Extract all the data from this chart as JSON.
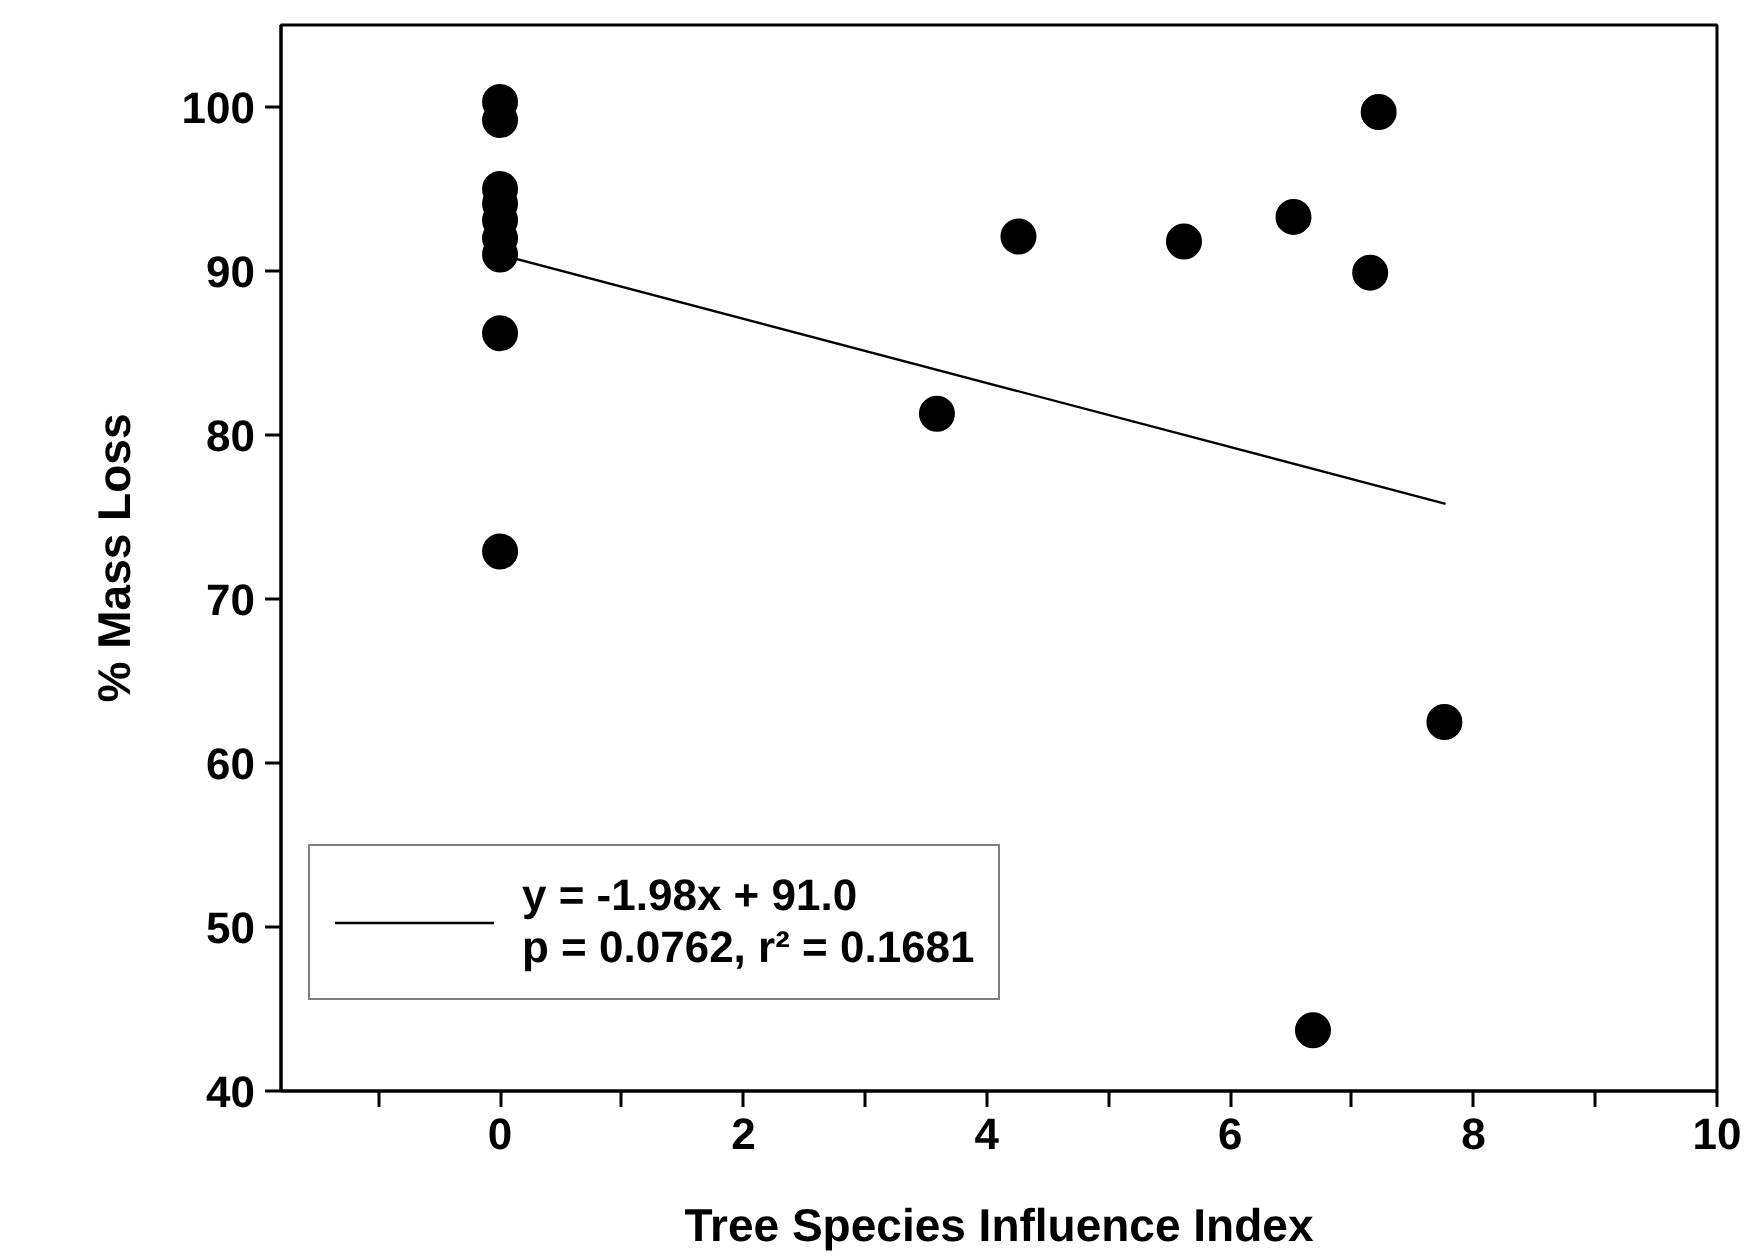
{
  "chart_data": {
    "type": "scatter",
    "xlabel": "Tree Species Influence Index",
    "ylabel": "% Mass Loss",
    "xlim": [
      -1.8,
      10
    ],
    "ylim": [
      40,
      105
    ],
    "xticks": [
      {
        "value": -1,
        "label": null
      },
      0,
      {
        "value": 1,
        "label": null
      },
      2,
      {
        "value": 3,
        "label": null
      },
      4,
      {
        "value": 5,
        "label": null
      },
      6,
      {
        "value": 7,
        "label": null
      },
      8,
      {
        "value": 9,
        "label": null
      },
      10
    ],
    "yticks": [
      40,
      50,
      60,
      70,
      80,
      90,
      100
    ],
    "grid": false,
    "legend": "bottom left",
    "series": [
      {
        "color": "#000000",
        "marker": "circle",
        "x": [
          0,
          0,
          0,
          0,
          0,
          0,
          0,
          0,
          0,
          3.59,
          4.26,
          5.62,
          6.52,
          7.15,
          7.22,
          7.76,
          6.68
        ],
        "values": [
          100.3,
          99.2,
          95.0,
          94.1,
          93.1,
          92.0,
          91.0,
          86.2,
          72.9,
          81.3,
          92.1,
          91.8,
          93.3,
          89.9,
          99.7,
          62.5,
          43.7
        ]
      },
      {
        "type": "line",
        "name": "y = -1.98x + 91.0",
        "color": "#000000",
        "line_style": "solid",
        "marker": "none",
        "x": [
          0,
          7.77
        ],
        "values": [
          91.0,
          75.8
        ]
      }
    ],
    "annotations": [
      "p = 0.0762, r² = 0.1681"
    ]
  }
}
